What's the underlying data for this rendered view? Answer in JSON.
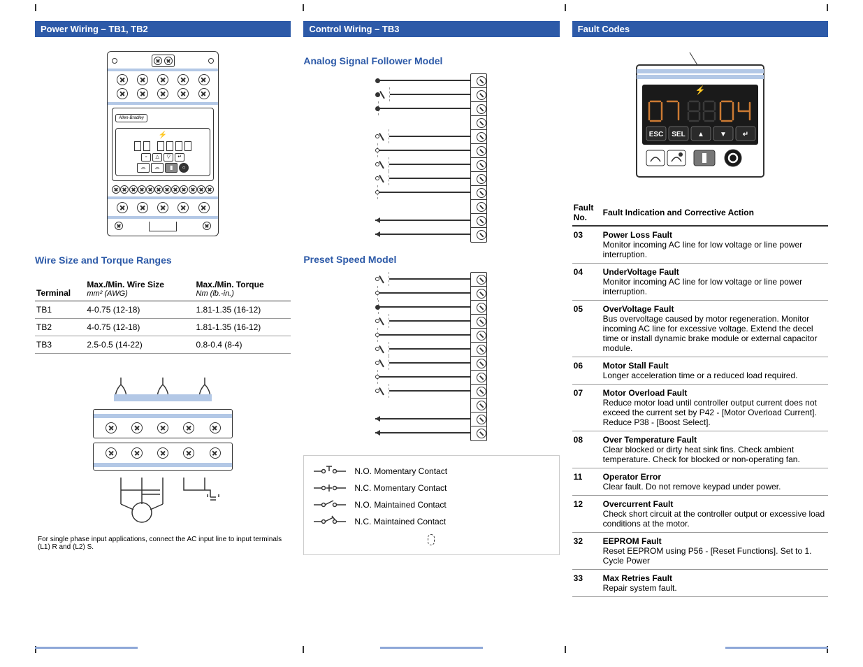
{
  "col1": {
    "header": "Power Wiring – TB1, TB2",
    "device_brand": "Allen-Bradley",
    "wire_heading": "Wire Size and Torque Ranges",
    "table": {
      "columns": [
        {
          "title": "Terminal",
          "sub": ""
        },
        {
          "title": "Max./Min. Wire Size",
          "sub": "mm² (AWG)"
        },
        {
          "title": "Max./Min. Torque",
          "sub": "Nm (lb.-in.)"
        }
      ],
      "rows": [
        [
          "TB1",
          "4-0.75 (12-18)",
          "1.81-1.35 (16-12)"
        ],
        [
          "TB2",
          "4-0.75 (12-18)",
          "1.81-1.35 (16-12)"
        ],
        [
          "TB3",
          "2.5-0.5 (14-22)",
          "0.8-0.4 (8-4)"
        ]
      ]
    },
    "caption": "For single phase input applications, connect the AC input line to input terminals (L1) R and (L2) S."
  },
  "col2": {
    "header": "Control Wiring – TB3",
    "sub1": "Analog Signal Follower Model",
    "sub2": "Preset Speed Model",
    "analog_rows": 12,
    "preset_rows": 12,
    "legend": [
      "N.O. Momentary Contact",
      "N.C. Momentary Contact",
      "N.O. Maintained Contact",
      "N.C. Maintained Contact"
    ]
  },
  "col3": {
    "header": "Fault Codes",
    "display_left": "07",
    "display_right": "04",
    "buttons": [
      "ESC",
      "SEL",
      "▲",
      "▼",
      "↵"
    ],
    "thead": [
      "Fault No.",
      "Fault Indication and Corrective Action"
    ],
    "faults": [
      {
        "no": "03",
        "name": "Power Loss Fault",
        "desc": "Monitor incoming AC line for low voltage or line power interruption."
      },
      {
        "no": "04",
        "name": "UnderVoltage Fault",
        "desc": "Monitor incoming AC line for low voltage or line power interruption."
      },
      {
        "no": "05",
        "name": "OverVoltage Fault",
        "desc": "Bus overvoltage caused by motor regeneration. Monitor incoming AC line for excessive voltage. Extend the decel time or install dynamic brake module or external capacitor module."
      },
      {
        "no": "06",
        "name": "Motor Stall Fault",
        "desc": "Longer acceleration time or a reduced load required."
      },
      {
        "no": "07",
        "name": "Motor Overload Fault",
        "desc": "Reduce motor load until controller output current does not exceed the current set by P42 - [Motor Overload Current]. Reduce P38 - [Boost Select]."
      },
      {
        "no": "08",
        "name": "Over Temperature Fault",
        "desc": "Clear blocked or dirty heat sink fins. Check ambient temperature. Check for blocked or non-operating fan."
      },
      {
        "no": "11",
        "name": "Operator Error",
        "desc": "Clear fault. Do not remove keypad under power."
      },
      {
        "no": "12",
        "name": "Overcurrent Fault",
        "desc": "Check short circuit at the controller output or excessive load conditions at the motor."
      },
      {
        "no": "32",
        "name": "EEPROM Fault",
        "desc": "Reset EEPROM using P56 - [Reset Functions]. Set to 1. Cycle Power"
      },
      {
        "no": "33",
        "name": "Max Retries Fault",
        "desc": "Repair system fault."
      }
    ]
  },
  "colors": {
    "header_bg": "#2d5aa8",
    "accent": "#8ea8d8",
    "shade": "#b3c8e6",
    "lcd_bg": "#1a1a1a",
    "lcd_seg": "#cc7a33"
  }
}
